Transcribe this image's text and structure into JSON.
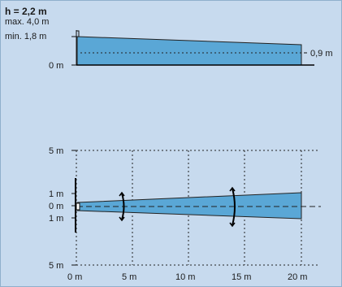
{
  "side_view": {
    "height_label": "h = 2,2 m",
    "max_label": "max. 4,0 m",
    "min_label": "min. 1,8 m",
    "zero_label": "0 m",
    "end_height_label": "0,9 m"
  },
  "top_view": {
    "y_labels": [
      "5 m",
      "1 m",
      "0 m",
      "1 m",
      "5 m"
    ],
    "x_labels": [
      "0 m",
      "5 m",
      "10 m",
      "15 m",
      "20 m"
    ]
  },
  "colors": {
    "background": "#c7daee",
    "beam": "#5aa7d6"
  }
}
